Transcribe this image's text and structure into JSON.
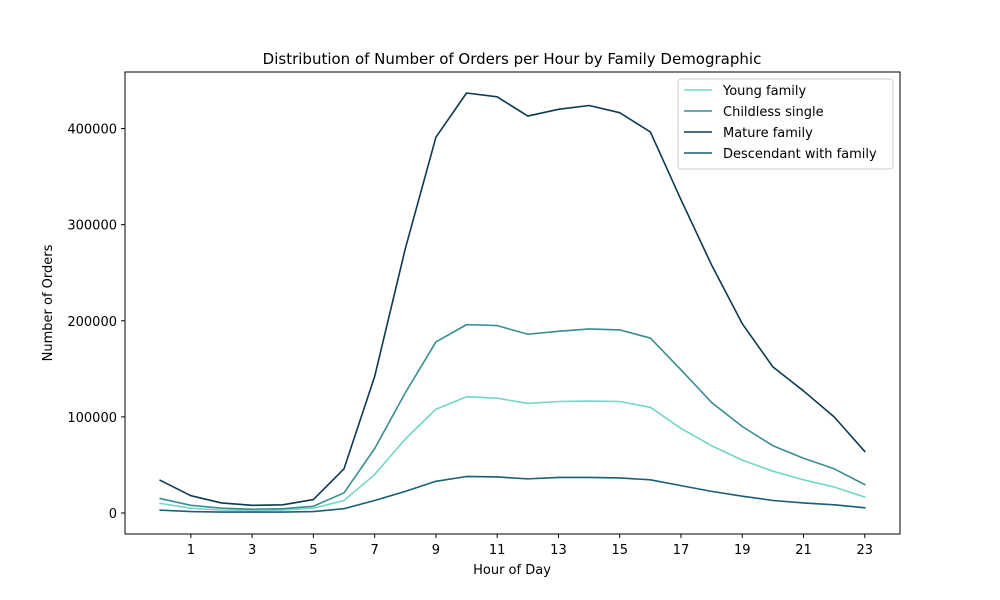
{
  "chart_data": {
    "type": "line",
    "title": "Distribution of Number of Orders per Hour by Family Demographic",
    "xlabel": "Hour of Day",
    "ylabel": "Number of Orders",
    "x": [
      0,
      1,
      2,
      3,
      4,
      5,
      6,
      7,
      8,
      9,
      10,
      11,
      12,
      13,
      14,
      15,
      16,
      17,
      18,
      19,
      20,
      21,
      22,
      23
    ],
    "xticks": [
      1,
      3,
      5,
      7,
      9,
      11,
      13,
      15,
      17,
      19,
      21,
      23
    ],
    "yticks": [
      0,
      100000,
      200000,
      300000,
      400000
    ],
    "xlim": [
      -1.15,
      24.15
    ],
    "ylim": [
      -21850,
      458850
    ],
    "grid": false,
    "legend_position": "top-right",
    "series": [
      {
        "name": "Young family",
        "color": "#72d7c7",
        "values": [
          10000,
          5000,
          3000,
          2500,
          3000,
          5000,
          13000,
          40000,
          77000,
          108000,
          121000,
          119500,
          114000,
          116000,
          116500,
          116000,
          110000,
          88000,
          70000,
          55000,
          43500,
          34500,
          27000,
          16500
        ]
      },
      {
        "name": "Childless single",
        "color": "#3a8e91",
        "values": [
          15000,
          8000,
          5000,
          4000,
          4500,
          7000,
          21000,
          67000,
          125000,
          178000,
          196000,
          195000,
          186000,
          189000,
          191500,
          190500,
          182000,
          149000,
          115000,
          90000,
          70000,
          57000,
          46000,
          29500
        ]
      },
      {
        "name": "Mature family",
        "color": "#0c3a52",
        "values": [
          34000,
          18000,
          10500,
          8000,
          8500,
          14000,
          46000,
          142000,
          275000,
          391000,
          437000,
          433000,
          413000,
          420000,
          424000,
          416500,
          396500,
          326000,
          258000,
          197000,
          152000,
          127000,
          100000,
          64000
        ]
      },
      {
        "name": "Descendant with family",
        "color": "#1a5f7a",
        "values": [
          3000,
          1500,
          1000,
          1000,
          1000,
          1500,
          4500,
          13000,
          22500,
          33000,
          38000,
          37500,
          35500,
          37000,
          37000,
          36500,
          34500,
          28500,
          22500,
          17500,
          13000,
          10500,
          8500,
          5500
        ]
      }
    ]
  }
}
